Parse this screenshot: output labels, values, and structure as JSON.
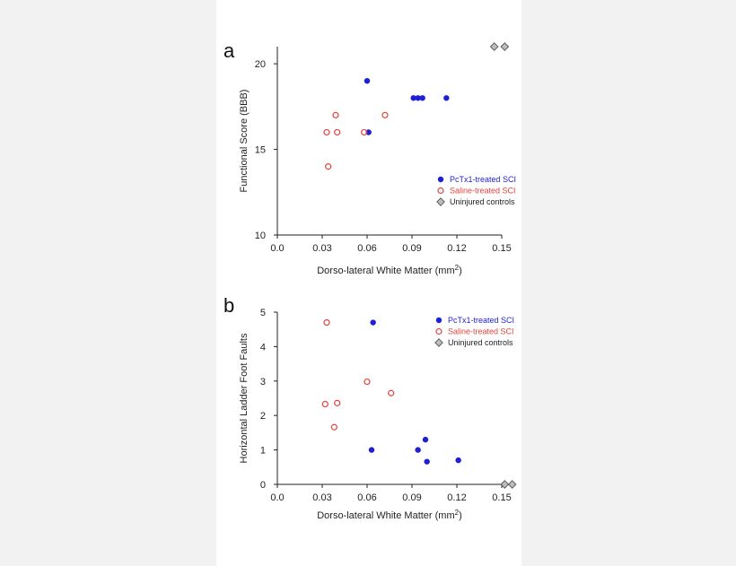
{
  "chart_data": [
    {
      "panel": "a",
      "type": "scatter",
      "xlabel": "Dorso-lateral White Matter (mm",
      "xlabel_sup": "2",
      "xlabel_end": ")",
      "ylabel": "Functional Score (BBB)",
      "xlim": [
        0,
        0.15
      ],
      "ylim": [
        10,
        21
      ],
      "xticks": [
        0.0,
        0.03,
        0.06,
        0.09,
        0.12,
        0.15
      ],
      "xtick_labels": [
        "0.0",
        "0.03",
        "0.06",
        "0.09",
        "0.12",
        "0.15"
      ],
      "yticks": [
        10,
        15,
        20
      ],
      "ytick_labels": [
        "10",
        "15",
        "20"
      ],
      "legend_position": "bottom-right",
      "series": [
        {
          "name": "PcTx1-treated SCI",
          "color": "#1f1fd6",
          "marker": "filled-circle",
          "points": [
            [
              0.06,
              19
            ],
            [
              0.061,
              16
            ],
            [
              0.091,
              18
            ],
            [
              0.094,
              18
            ],
            [
              0.097,
              18
            ],
            [
              0.113,
              18
            ]
          ]
        },
        {
          "name": "Saline-treated SCI",
          "color": "#e0443c",
          "marker": "open-circle",
          "points": [
            [
              0.033,
              16
            ],
            [
              0.034,
              14
            ],
            [
              0.039,
              17
            ],
            [
              0.04,
              16
            ],
            [
              0.058,
              16
            ],
            [
              0.072,
              17
            ]
          ]
        },
        {
          "name": "Uninjured controls",
          "color": "#888888",
          "marker": "diamond",
          "points": [
            [
              0.145,
              21
            ],
            [
              0.152,
              21
            ]
          ]
        }
      ]
    },
    {
      "panel": "b",
      "type": "scatter",
      "xlabel": "Dorso-lateral White Matter (mm",
      "xlabel_sup": "2",
      "xlabel_end": ")",
      "ylabel": "Horizontal Ladder Foot Faults",
      "xlim": [
        0,
        0.15
      ],
      "ylim": [
        0,
        5
      ],
      "xticks": [
        0.0,
        0.03,
        0.06,
        0.09,
        0.12,
        0.15
      ],
      "xtick_labels": [
        "0.0",
        "0.03",
        "0.06",
        "0.09",
        "0.12",
        "0.15"
      ],
      "yticks": [
        0,
        1,
        2,
        3,
        4,
        5
      ],
      "ytick_labels": [
        "0",
        "1",
        "2",
        "3",
        "4",
        "5"
      ],
      "legend_position": "top-right",
      "series": [
        {
          "name": "PcTx1-treated SCI",
          "color": "#1f1fd6",
          "marker": "filled-circle",
          "points": [
            [
              0.064,
              4.7
            ],
            [
              0.063,
              1.0
            ],
            [
              0.094,
              1.0
            ],
            [
              0.099,
              1.3
            ],
            [
              0.1,
              0.66
            ],
            [
              0.121,
              0.7
            ]
          ]
        },
        {
          "name": "Saline-treated SCI",
          "color": "#e0443c",
          "marker": "open-circle",
          "points": [
            [
              0.033,
              4.7
            ],
            [
              0.032,
              2.33
            ],
            [
              0.04,
              2.36
            ],
            [
              0.038,
              1.66
            ],
            [
              0.06,
              2.98
            ],
            [
              0.076,
              2.65
            ]
          ]
        },
        {
          "name": "Uninjured controls",
          "color": "#888888",
          "marker": "diamond",
          "points": [
            [
              0.152,
              0.0
            ],
            [
              0.157,
              0.0
            ]
          ]
        }
      ]
    }
  ]
}
